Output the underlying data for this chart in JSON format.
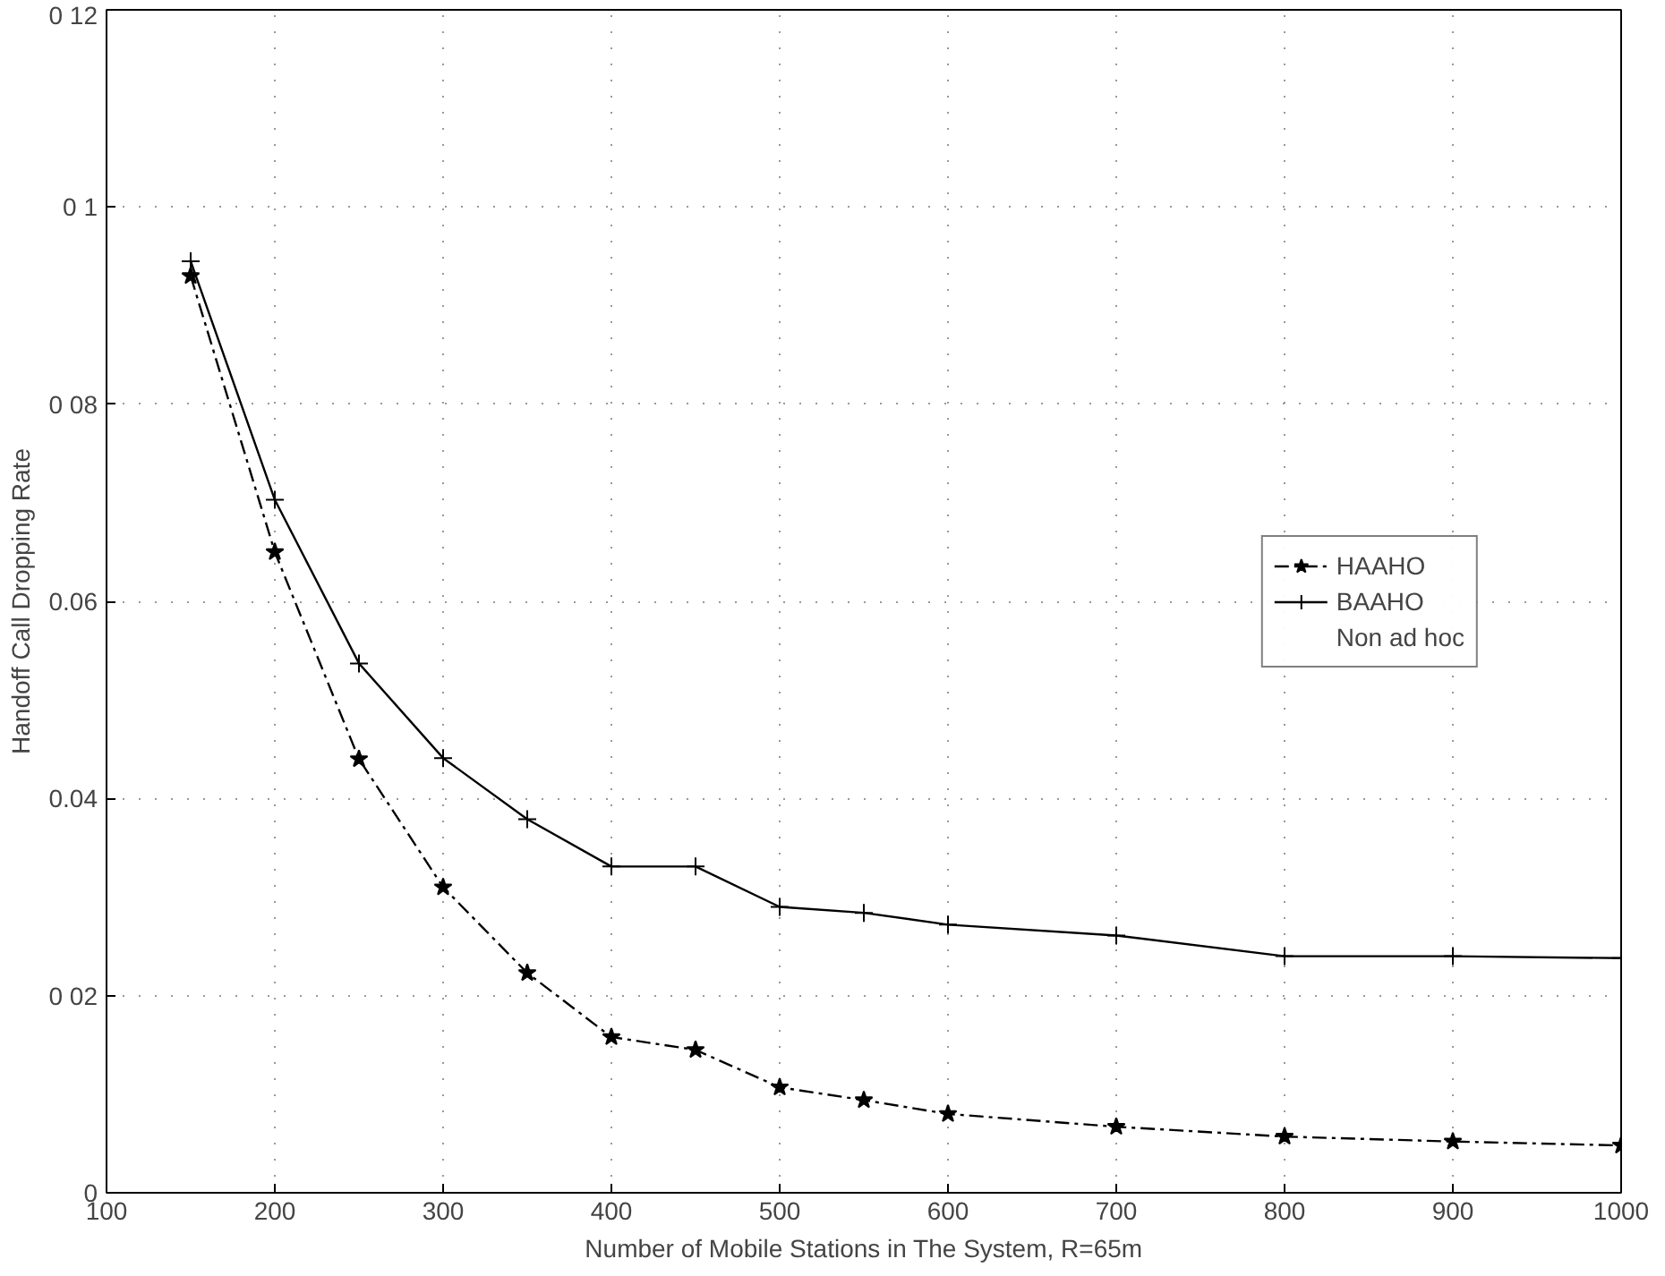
{
  "chart_data": {
    "type": "line",
    "xlabel": "Number of Mobile Stations in The System, R=65m",
    "ylabel": "Handoff Call Dropping Rate",
    "x": [
      150,
      200,
      250,
      300,
      350,
      400,
      450,
      500,
      550,
      600,
      700,
      800,
      900,
      1000
    ],
    "series": [
      {
        "name": "HAAHO",
        "color": "#000000",
        "marker": "star",
        "line_style": "dashed",
        "values": [
          0.093,
          0.065,
          0.044,
          0.031,
          0.0223,
          0.0158,
          0.0145,
          0.0107,
          0.0094,
          0.008,
          0.0067,
          0.0057,
          0.0052,
          0.0048
        ]
      },
      {
        "name": "BAAHO",
        "color": "#000000",
        "marker": "cross",
        "line_style": "solid",
        "values": [
          0.0945,
          0.0703,
          0.0537,
          0.0441,
          0.0379,
          0.0331,
          0.0331,
          0.029,
          0.0284,
          0.0272,
          0.0261,
          0.024,
          0.024,
          0.0238
        ]
      },
      {
        "name": "Non ad hoc",
        "marker": "none",
        "line_style": "dotted",
        "values": [
          null,
          null,
          null,
          null,
          null,
          null,
          null,
          null,
          null,
          null,
          null,
          null,
          null,
          null
        ]
      }
    ],
    "xlim": [
      100,
      1000
    ],
    "ylim": [
      0,
      0.12
    ],
    "xticks": [
      100,
      200,
      300,
      400,
      500,
      600,
      700,
      800,
      900,
      1000
    ],
    "yticks": [
      0,
      {
        "value": 0.02,
        "label": "0 02"
      },
      {
        "value": 0.04,
        "label": "0.04"
      },
      {
        "value": 0.06,
        "label": "0.06"
      },
      {
        "value": 0.08,
        "label": "0 08"
      },
      {
        "value": 0.1,
        "label": "0 1"
      },
      {
        "value": 0.12,
        "label": "0 12"
      }
    ],
    "grid": true,
    "legend": "right"
  }
}
